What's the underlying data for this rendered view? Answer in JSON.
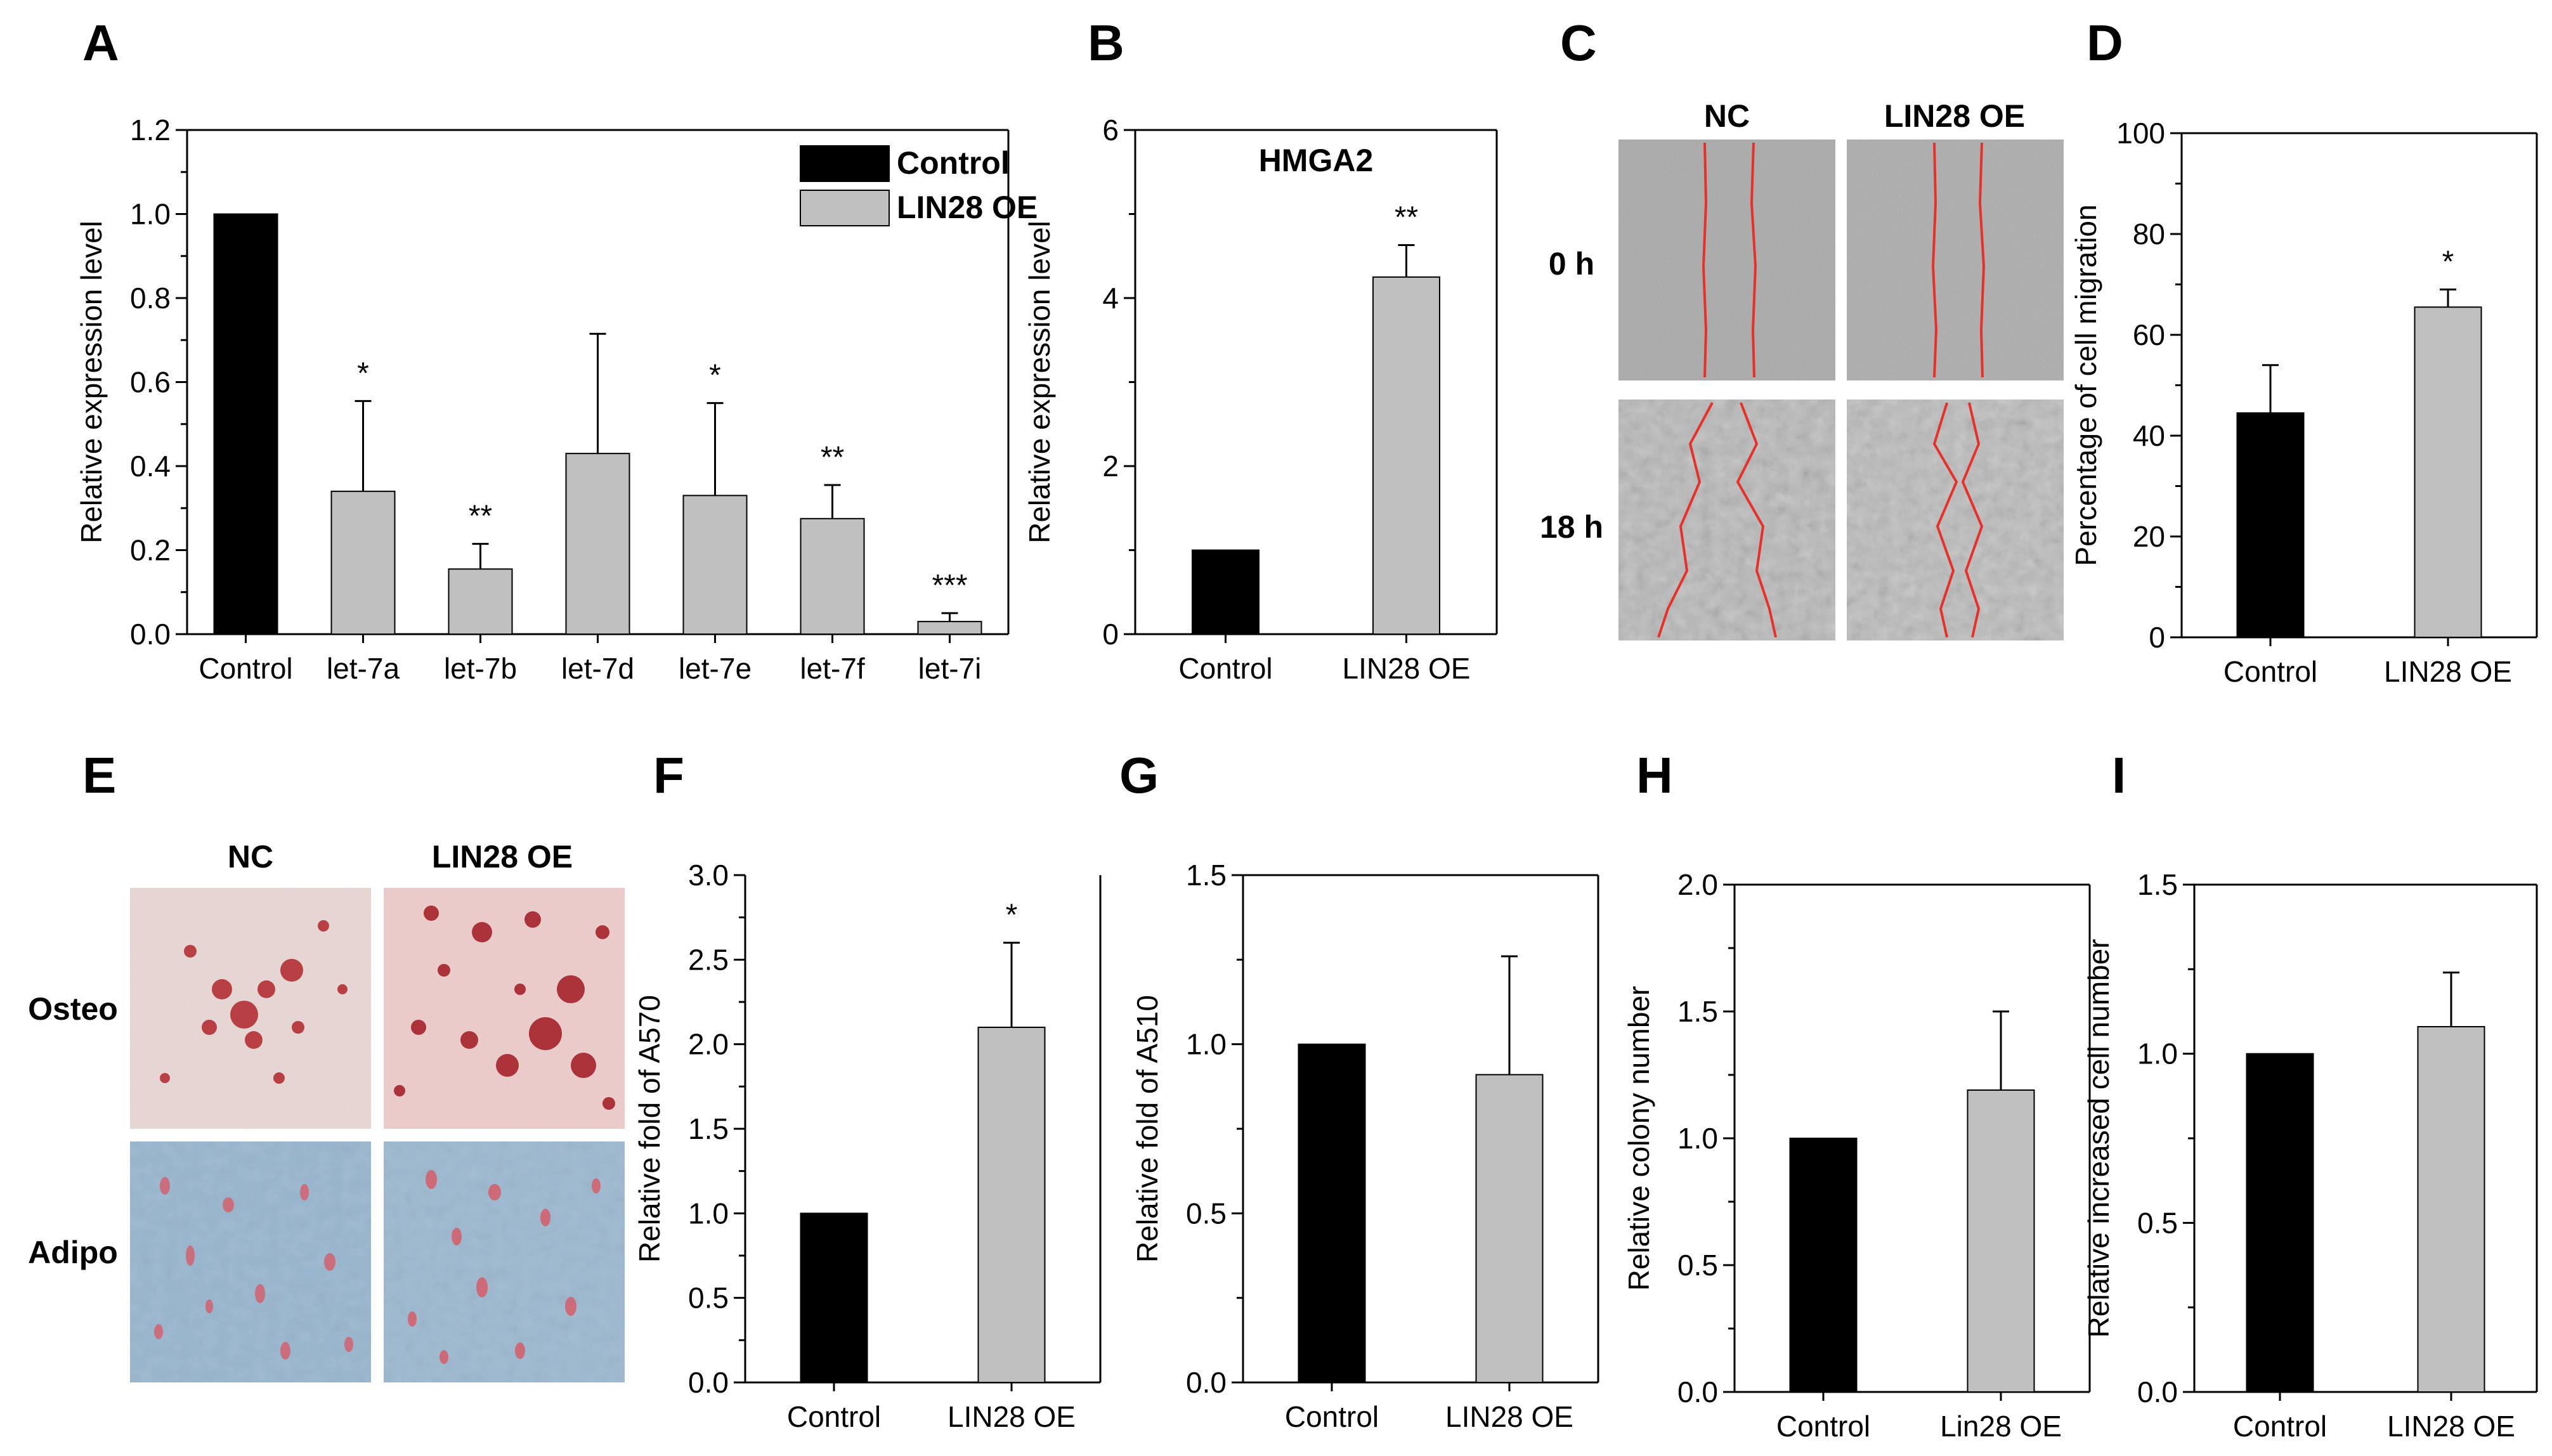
{
  "colors": {
    "control": "#000000",
    "treatment": "#c0c0c0",
    "axis": "#000000",
    "wound_line": "#e8302a"
  },
  "chart_data": [
    {
      "panel": "A",
      "type": "bar",
      "title": "",
      "xlabel": "",
      "ylabel": "Relative expression level",
      "ylim": [
        0,
        1.2
      ],
      "yticks": [
        "0.0",
        "0.2",
        "0.4",
        "0.6",
        "0.8",
        "1.0",
        "1.2"
      ],
      "categories": [
        "Control",
        "let-7a",
        "let-7b",
        "let-7d",
        "let-7e",
        "let-7f",
        "let-7i"
      ],
      "values": [
        1.0,
        0.34,
        0.155,
        0.43,
        0.33,
        0.275,
        0.03
      ],
      "errors": [
        0,
        0.215,
        0.06,
        0.285,
        0.22,
        0.08,
        0.02
      ],
      "series_of_bar": [
        "Control",
        "LIN28 OE",
        "LIN28 OE",
        "LIN28 OE",
        "LIN28 OE",
        "LIN28 OE",
        "LIN28 OE"
      ],
      "significance": [
        "",
        "*",
        "**",
        "",
        "*",
        "**",
        "***"
      ],
      "legend": [
        "Control",
        "LIN28 OE"
      ],
      "legend_position": "top-right"
    },
    {
      "panel": "B",
      "type": "bar",
      "title": "HMGA2",
      "xlabel": "",
      "ylabel": "Relative expression level",
      "ylim": [
        0,
        6
      ],
      "yticks": [
        "0",
        "2",
        "4",
        "6"
      ],
      "categories": [
        "Control",
        "LIN28 OE"
      ],
      "values": [
        1.0,
        4.25
      ],
      "errors": [
        0,
        0.38
      ],
      "significance": [
        "",
        "**"
      ]
    },
    {
      "panel": "D",
      "type": "bar",
      "title": "",
      "xlabel": "",
      "ylabel": "Percentage of cell migration",
      "ylim": [
        0,
        100
      ],
      "yticks": [
        "0",
        "20",
        "40",
        "60",
        "80",
        "100"
      ],
      "categories": [
        "Control",
        "LIN28 OE"
      ],
      "values": [
        44.5,
        65.5
      ],
      "errors": [
        9.5,
        3.5
      ],
      "significance": [
        "",
        "*"
      ]
    },
    {
      "panel": "F",
      "type": "bar",
      "title": "",
      "xlabel": "",
      "ylabel": "Relative fold of A570",
      "ylim": [
        0,
        3.0
      ],
      "yticks": [
        "0.0",
        "0.5",
        "1.0",
        "1.5",
        "2.0",
        "2.5",
        "3.0"
      ],
      "categories": [
        "Control",
        "LIN28 OE"
      ],
      "values": [
        1.0,
        2.1
      ],
      "errors": [
        0,
        0.5
      ],
      "significance": [
        "",
        "*"
      ]
    },
    {
      "panel": "G",
      "type": "bar",
      "title": "",
      "xlabel": "",
      "ylabel": "Relative fold of A510",
      "ylim": [
        0,
        1.5
      ],
      "yticks": [
        "0.0",
        "0.5",
        "1.0",
        "1.5"
      ],
      "categories": [
        "Control",
        "LIN28 OE"
      ],
      "values": [
        1.0,
        0.91
      ],
      "errors": [
        0,
        0.35
      ],
      "significance": [
        "",
        ""
      ]
    },
    {
      "panel": "H",
      "type": "bar",
      "title": "",
      "xlabel": "",
      "ylabel": "Relative colony number",
      "ylim": [
        0,
        2.0
      ],
      "yticks": [
        "0.0",
        "0.5",
        "1.0",
        "1.5",
        "2.0"
      ],
      "categories": [
        "Control",
        "Lin28 OE"
      ],
      "values": [
        1.0,
        1.19
      ],
      "errors": [
        0,
        0.31
      ],
      "significance": [
        "",
        ""
      ]
    },
    {
      "panel": "I",
      "type": "bar",
      "title": "",
      "xlabel": "",
      "ylabel": "Relative increased cell number",
      "ylim": [
        0,
        1.5
      ],
      "yticks": [
        "0.0",
        "0.5",
        "1.0",
        "1.5"
      ],
      "categories": [
        "Control",
        "LIN28 OE"
      ],
      "values": [
        1.0,
        1.08
      ],
      "errors": [
        0,
        0.16
      ],
      "significance": [
        "",
        ""
      ]
    }
  ],
  "panel_letters": [
    "A",
    "B",
    "C",
    "D",
    "E",
    "F",
    "G",
    "H",
    "I"
  ],
  "micrograph_panels": {
    "C": {
      "column_headers": [
        "NC",
        "LIN28 OE"
      ],
      "row_labels": [
        "0 h",
        "18 h"
      ]
    },
    "E": {
      "column_headers": [
        "NC",
        "LIN28 OE"
      ],
      "row_labels": [
        "Osteo",
        "Adipo"
      ]
    }
  }
}
